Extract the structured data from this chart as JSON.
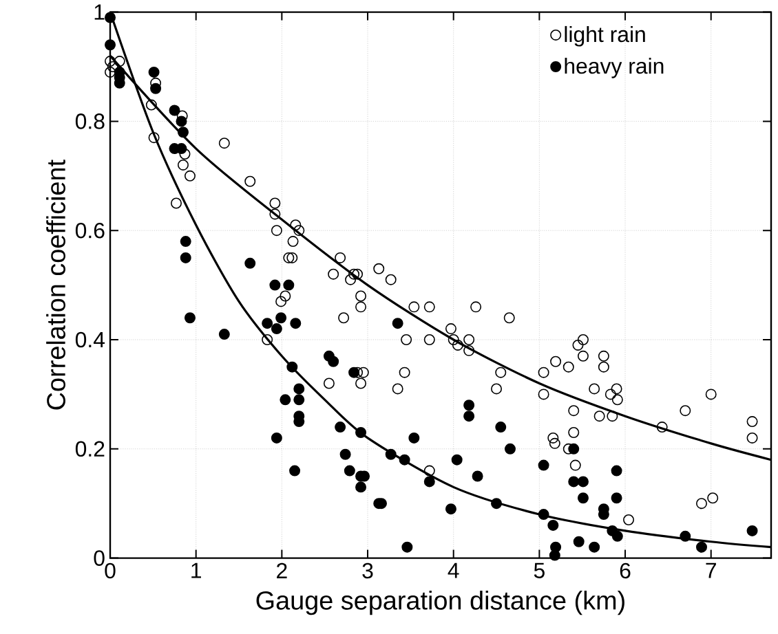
{
  "chart_data": {
    "type": "scatter",
    "xlabel": "Gauge separation distance (km)",
    "ylabel": "Correlation coefficient",
    "xlim": [
      0,
      7.7
    ],
    "ylim": [
      0,
      1
    ],
    "xticks": [
      0,
      1,
      2,
      3,
      4,
      5,
      6,
      7
    ],
    "yticks": [
      0,
      0.2,
      0.4,
      0.6,
      0.8,
      1
    ],
    "grid": true,
    "legend": "top right",
    "marker": "circle",
    "series": [
      {
        "name": "light rain",
        "color": "#000000",
        "x": [
          0,
          0,
          0.11,
          0.03,
          0.53,
          0.48,
          0.51,
          0.77,
          0.84,
          0.87,
          0.85,
          0.93,
          1.33,
          1.63,
          1.92,
          1.92,
          1.94,
          2.16,
          2.2,
          2.13,
          2.08,
          2.12,
          2.68,
          2.6,
          2.8,
          2.84,
          3.13,
          2.88,
          2.92,
          2.92,
          3.27,
          3.54,
          3.72,
          3.45,
          3.72,
          3.97,
          4.0,
          4.05,
          4.18,
          4.18,
          4.26,
          4.65,
          2.88,
          2.95,
          2.92,
          3.43,
          3.35,
          4.55,
          4.5,
          5.05,
          5.05,
          5.19,
          5.34,
          5.45,
          5.4,
          5.16,
          5.18,
          5.34,
          5.4,
          5.42,
          3.72,
          2.04,
          1.99,
          2.72,
          1.83,
          2.55,
          5.51,
          5.51,
          5.75,
          5.75,
          5.64,
          5.9,
          5.83,
          5.91,
          5.7,
          5.85,
          6.43,
          6.7,
          7.0,
          7.48,
          7.48,
          6.89,
          7.02,
          6.04
        ],
        "values": [
          0.91,
          0.89,
          0.91,
          0.9,
          0.87,
          0.83,
          0.77,
          0.65,
          0.81,
          0.74,
          0.72,
          0.7,
          0.76,
          0.69,
          0.65,
          0.63,
          0.6,
          0.61,
          0.6,
          0.58,
          0.55,
          0.55,
          0.55,
          0.52,
          0.51,
          0.52,
          0.53,
          0.52,
          0.48,
          0.46,
          0.51,
          0.46,
          0.46,
          0.4,
          0.4,
          0.42,
          0.4,
          0.39,
          0.4,
          0.38,
          0.46,
          0.44,
          0.34,
          0.34,
          0.32,
          0.34,
          0.31,
          0.34,
          0.31,
          0.34,
          0.3,
          0.36,
          0.35,
          0.39,
          0.27,
          0.22,
          0.21,
          0.2,
          0.23,
          0.17,
          0.16,
          0.48,
          0.47,
          0.44,
          0.4,
          0.32,
          0.4,
          0.37,
          0.37,
          0.35,
          0.31,
          0.31,
          0.3,
          0.29,
          0.26,
          0.26,
          0.24,
          0.27,
          0.3,
          0.25,
          0.22,
          0.1,
          0.11,
          0.07
        ]
      },
      {
        "name": "heavy rain",
        "color": "#000000",
        "x": [
          0,
          0,
          0.11,
          0.11,
          0.11,
          0.51,
          0.53,
          0.75,
          0.83,
          0.85,
          0.75,
          0.83,
          0.88,
          0.88,
          1.63,
          1.92,
          2.08,
          0.93,
          1.33,
          1.83,
          1.94,
          1.99,
          2.16,
          2.12,
          2.2,
          2.2,
          2.04,
          2.2,
          2.2,
          1.94,
          2.15,
          2.55,
          2.6,
          2.84,
          2.68,
          2.92,
          2.74,
          2.79,
          2.92,
          2.96,
          2.92,
          3.13,
          3.35,
          4.18,
          4.18,
          4.55,
          3.54,
          4.66,
          3.27,
          3.43,
          4.04,
          3.72,
          4.28,
          5.05,
          5.4,
          5.4,
          3.16,
          3.97,
          4.5,
          5.05,
          5.16,
          3.46,
          5.19,
          5.18,
          5.51,
          5.51,
          5.9,
          5.9,
          5.75,
          5.75,
          5.85,
          5.91,
          5.46,
          5.64,
          6.7,
          6.89,
          7.48
        ],
        "values": [
          0.99,
          0.94,
          0.89,
          0.88,
          0.87,
          0.89,
          0.86,
          0.82,
          0.8,
          0.78,
          0.75,
          0.75,
          0.58,
          0.55,
          0.54,
          0.5,
          0.5,
          0.44,
          0.41,
          0.43,
          0.42,
          0.44,
          0.43,
          0.35,
          0.31,
          0.29,
          0.29,
          0.26,
          0.25,
          0.22,
          0.16,
          0.37,
          0.36,
          0.34,
          0.24,
          0.23,
          0.19,
          0.16,
          0.15,
          0.15,
          0.13,
          0.1,
          0.43,
          0.28,
          0.26,
          0.24,
          0.22,
          0.2,
          0.19,
          0.18,
          0.18,
          0.14,
          0.15,
          0.17,
          0.2,
          0.14,
          0.1,
          0.09,
          0.1,
          0.08,
          0.06,
          0.02,
          0.02,
          0.005,
          0.14,
          0.11,
          0.16,
          0.11,
          0.09,
          0.08,
          0.05,
          0.04,
          0.03,
          0.02,
          0.04,
          0.02,
          0.05
        ]
      },
      {
        "type": "line",
        "marker": "none",
        "color": "#000000",
        "x": [
          0,
          1,
          2,
          3,
          4,
          5,
          6,
          7,
          7.7
        ],
        "values": [
          0.92,
          0.75,
          0.62,
          0.5,
          0.4,
          0.32,
          0.26,
          0.21,
          0.18
        ]
      },
      {
        "type": "line",
        "marker": "none",
        "color": "#000000",
        "x": [
          0,
          0.5,
          1,
          1.5,
          2,
          2.5,
          3,
          4,
          5,
          6,
          7,
          7.7
        ],
        "values": [
          1.0,
          0.78,
          0.61,
          0.47,
          0.37,
          0.29,
          0.22,
          0.13,
          0.08,
          0.05,
          0.03,
          0.02
        ]
      }
    ]
  }
}
